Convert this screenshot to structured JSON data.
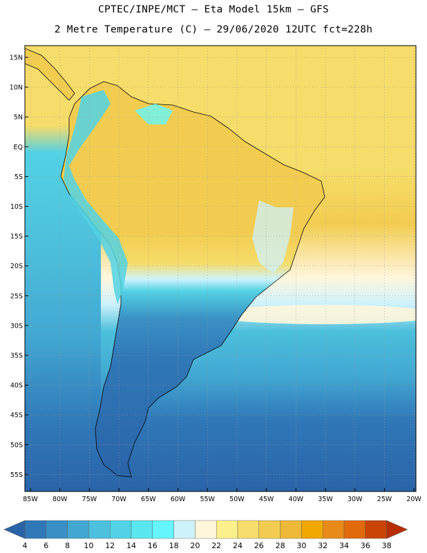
{
  "header": {
    "line1": "CPTEC/INPE/MCT –  Eta Model 15km – GFS",
    "line2": "2 Metre Temperature (C) – 29/06/2020 12UTC fct=228h"
  },
  "axes": {
    "lat_labels": [
      "15N",
      "10N",
      "5N",
      "EQ",
      "5S",
      "10S",
      "15S",
      "20S",
      "25S",
      "30S",
      "35S",
      "40S",
      "45S",
      "50S",
      "55S"
    ],
    "lon_labels": [
      "85W",
      "80W",
      "75W",
      "70W",
      "65W",
      "60W",
      "55W",
      "50W",
      "45W",
      "40W",
      "35W",
      "30W",
      "25W",
      "20W"
    ]
  },
  "colorbar": {
    "labels": [
      "4",
      "6",
      "8",
      "10",
      "12",
      "14",
      "16",
      "18",
      "20",
      "22",
      "24",
      "26",
      "28",
      "30",
      "32",
      "34",
      "36",
      "38"
    ],
    "colors": [
      "#2a64a8",
      "#3078b8",
      "#3a90c4",
      "#42a8d2",
      "#4cc0dc",
      "#52d2e4",
      "#5ae6ee",
      "#64f6fa",
      "#cdf2fc",
      "#fff6dc",
      "#fbf08c",
      "#f6dc6a",
      "#f2cc50",
      "#eeb838",
      "#f0a800",
      "#e88a18",
      "#e06a0c",
      "#c84406",
      "#b82e04"
    ]
  },
  "colors": {
    "ocean_warm": "#f6dc6a",
    "ocean_mid": "#4cc0dc",
    "ocean_cold": "#2a64a8",
    "land_warm": "#f2cc50",
    "land_cold": "#3078b8"
  }
}
